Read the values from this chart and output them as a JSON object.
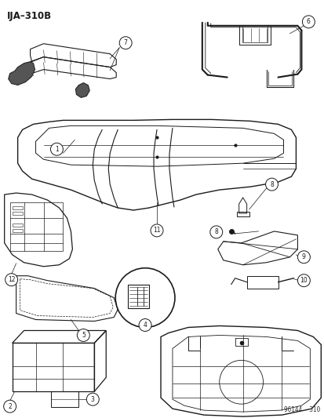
{
  "title": "IJA–310B",
  "watermark": "96144  310",
  "bg": "#ffffff",
  "lc": "#1a1a1a",
  "figsize": [
    4.14,
    5.33
  ],
  "dpi": 100
}
